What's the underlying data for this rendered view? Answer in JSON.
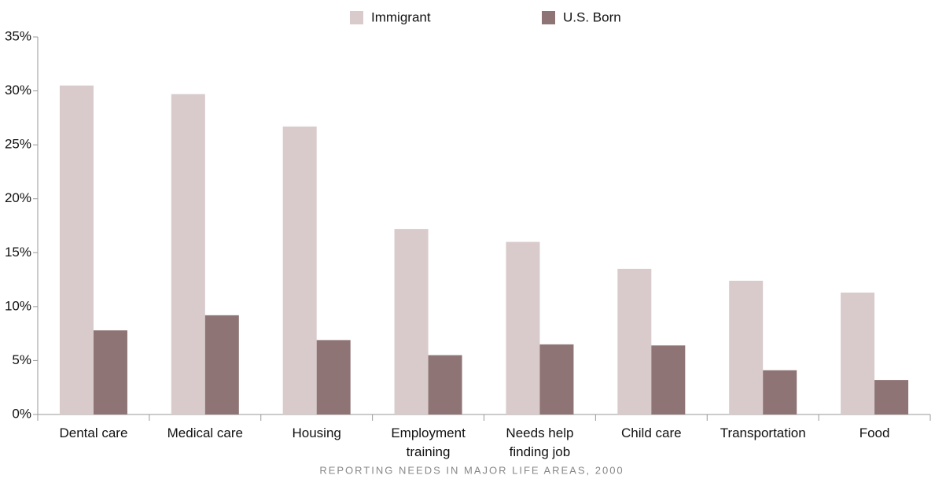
{
  "chart_data": {
    "type": "bar",
    "caption": "REPORTING NEEDS IN MAJOR LIFE AREAS, 2000",
    "categories": [
      "Dental care",
      "Medical care",
      "Housing",
      "Employment\ntraining",
      "Needs help\nfinding job",
      "Child care",
      "Transportation",
      "Food"
    ],
    "series": [
      {
        "name": "Immigrant",
        "color": "#d9cbcc",
        "values": [
          30.5,
          29.7,
          26.7,
          17.2,
          16.0,
          13.5,
          12.4,
          11.3
        ]
      },
      {
        "name": "U.S. Born",
        "color": "#8e7474",
        "values": [
          7.8,
          9.2,
          6.9,
          5.5,
          6.5,
          6.4,
          4.1,
          3.2
        ]
      }
    ],
    "ylim": [
      0,
      35
    ],
    "yticks": [
      {
        "value": 0,
        "label": "0%"
      },
      {
        "value": 5,
        "label": "5%"
      },
      {
        "value": 10,
        "label": "10%"
      },
      {
        "value": 15,
        "label": "15%"
      },
      {
        "value": 20,
        "label": "20%"
      },
      {
        "value": 25,
        "label": "25%"
      },
      {
        "value": 30,
        "label": "30%"
      },
      {
        "value": 35,
        "label": "35%"
      }
    ],
    "grid": false,
    "legend": "top"
  }
}
